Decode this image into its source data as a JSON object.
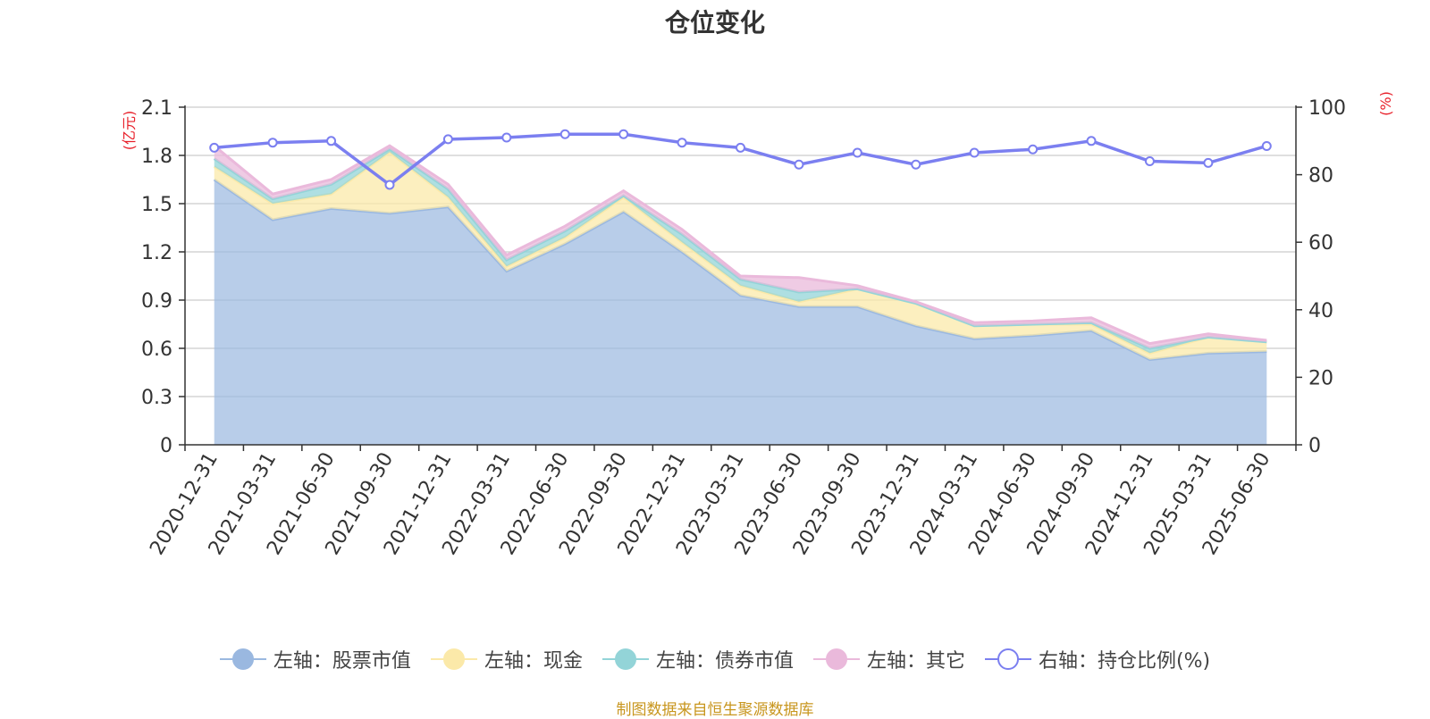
{
  "chart_data": {
    "type": "area",
    "title": "仓位变化",
    "source_note": "制图数据来自恒生聚源数据库",
    "left_axis": {
      "unit_label": "(亿元)",
      "ylim": [
        0,
        2.1
      ],
      "ticks": [
        "0",
        "0.3",
        "0.6",
        "0.9",
        "1.2",
        "1.5",
        "1.8",
        "2.1"
      ]
    },
    "right_axis": {
      "unit_label": "(%)",
      "ylim": [
        0,
        100
      ],
      "ticks": [
        "0",
        "20",
        "40",
        "60",
        "80",
        "100"
      ]
    },
    "categories": [
      "2020-12-31",
      "2021-03-31",
      "2021-06-30",
      "2021-09-30",
      "2021-12-31",
      "2022-03-31",
      "2022-06-30",
      "2022-09-30",
      "2022-12-31",
      "2023-03-31",
      "2023-06-30",
      "2023-09-30",
      "2023-12-31",
      "2024-03-31",
      "2024-06-30",
      "2024-09-30",
      "2024-12-31",
      "2025-03-31",
      "2025-06-30"
    ],
    "grid": true,
    "legend_position": "bottom",
    "series": [
      {
        "name": "左轴：股票市值",
        "axis": "left",
        "stacked": true,
        "color": "#9ab8e0",
        "values": [
          1.65,
          1.4,
          1.47,
          1.44,
          1.48,
          1.08,
          1.25,
          1.45,
          1.2,
          0.93,
          0.86,
          0.86,
          0.74,
          0.66,
          0.68,
          0.71,
          0.53,
          0.57,
          0.58
        ]
      },
      {
        "name": "左轴：现金",
        "axis": "left",
        "stacked": true,
        "color": "#fbe9a9",
        "values": [
          0.08,
          0.1,
          0.09,
          0.38,
          0.06,
          0.03,
          0.04,
          0.09,
          0.06,
          0.06,
          0.03,
          0.11,
          0.14,
          0.08,
          0.07,
          0.04,
          0.04,
          0.1,
          0.06
        ]
      },
      {
        "name": "左轴：债券市值",
        "axis": "left",
        "stacked": true,
        "color": "#93d4d8",
        "values": [
          0.05,
          0.03,
          0.06,
          0.02,
          0.05,
          0.04,
          0.04,
          0.01,
          0.05,
          0.04,
          0.06,
          0.0,
          0.0,
          0.0,
          0.0,
          0.01,
          0.03,
          0.0,
          0.0
        ]
      },
      {
        "name": "左轴：其它",
        "axis": "left",
        "stacked": true,
        "color": "#eab9db",
        "values": [
          0.08,
          0.03,
          0.03,
          0.02,
          0.03,
          0.03,
          0.03,
          0.03,
          0.03,
          0.02,
          0.09,
          0.02,
          0.01,
          0.02,
          0.02,
          0.03,
          0.03,
          0.02,
          0.01
        ]
      },
      {
        "name": "右轴：持仓比例(%)",
        "axis": "right",
        "stacked": false,
        "color": "#7b7ff0",
        "values": [
          88,
          89.5,
          90,
          77,
          90.5,
          91,
          92,
          92,
          89.5,
          88,
          83,
          86.5,
          83,
          86.5,
          87.5,
          90,
          84,
          83.5,
          88.5
        ]
      }
    ]
  }
}
